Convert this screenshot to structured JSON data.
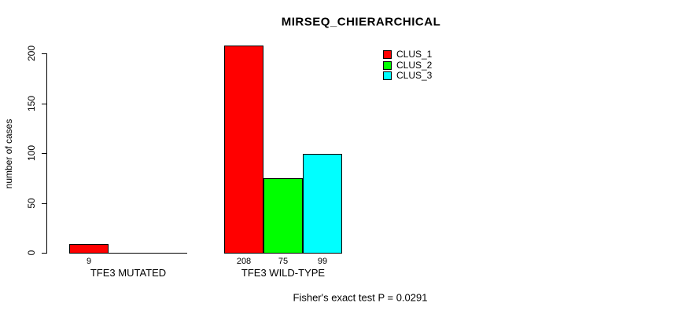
{
  "chart_data": {
    "type": "bar",
    "title": "MIRSEQ_CHIERARCHICAL",
    "ylabel": "number of cases",
    "xlabel": "",
    "ylim": [
      0,
      200
    ],
    "yticks": [
      0,
      50,
      100,
      150,
      200
    ],
    "grid": false,
    "categories": [
      "TFE3 MUTATED",
      "TFE3 WILD-TYPE"
    ],
    "series": [
      {
        "name": "CLUS_1",
        "color": "#ff0000",
        "values": [
          9,
          208
        ]
      },
      {
        "name": "CLUS_2",
        "color": "#00ff00",
        "values": [
          0,
          75
        ]
      },
      {
        "name": "CLUS_3",
        "color": "#00ffff",
        "values": [
          0,
          99
        ]
      }
    ],
    "bar_value_labels": [
      [
        "9",
        "",
        ""
      ],
      [
        "208",
        "75",
        "99"
      ]
    ],
    "legend": {
      "position": "top-right-inside",
      "entries": [
        {
          "label": "CLUS_1",
          "color": "#ff0000"
        },
        {
          "label": "CLUS_2",
          "color": "#00ff00"
        },
        {
          "label": "CLUS_3",
          "color": "#00ffff"
        }
      ]
    },
    "annotation": "Fisher's exact test P = 0.0291",
    "colors": {
      "background": "#ffffff",
      "axis": "#000000",
      "text": "#000000",
      "bar_border": "#000000"
    }
  }
}
